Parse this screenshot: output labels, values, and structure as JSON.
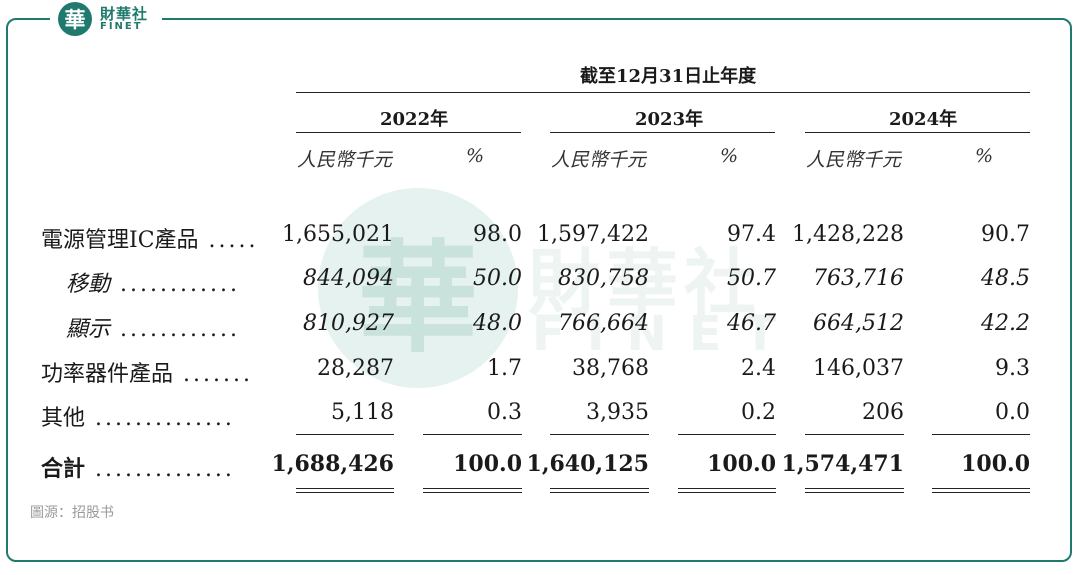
{
  "logo": {
    "badge_char": "華",
    "name_cn": "財華社",
    "name_en": "FINET"
  },
  "watermark": {
    "badge_char": "華",
    "name_cn": "財華社",
    "name_en": "FINET"
  },
  "header": {
    "period": "截至12月31日止年度",
    "years": [
      "2022年",
      "2023年",
      "2024年"
    ],
    "unit_amount": "人民幣千元",
    "unit_pct": "%"
  },
  "rows": [
    {
      "label": "電源管理IC產品",
      "leader": ".....",
      "style": "normal",
      "cells": [
        "1,655,021",
        "98.0",
        "1,597,422",
        "97.4",
        "1,428,228",
        "90.7"
      ]
    },
    {
      "label": "移動",
      "leader": "............",
      "style": "italic",
      "cells": [
        "844,094",
        "50.0",
        "830,758",
        "50.7",
        "763,716",
        "48.5"
      ]
    },
    {
      "label": "顯示",
      "leader": "............",
      "style": "italic",
      "cells": [
        "810,927",
        "48.0",
        "766,664",
        "46.7",
        "664,512",
        "42.2"
      ]
    },
    {
      "label": "功率器件產品",
      "leader": ".......",
      "style": "normal",
      "cells": [
        "28,287",
        "1.7",
        "38,768",
        "2.4",
        "146,037",
        "9.3"
      ]
    },
    {
      "label": "其他",
      "leader": "..............",
      "style": "normal",
      "cells": [
        "5,118",
        "0.3",
        "3,935",
        "0.2",
        "206",
        "0.0"
      ]
    },
    {
      "label": "合計",
      "leader": "..............",
      "style": "bold",
      "cells": [
        "1,688,426",
        "100.0",
        "1,640,125",
        "100.0",
        "1,574,471",
        "100.0"
      ]
    }
  ],
  "source": "圖源：招股书"
}
